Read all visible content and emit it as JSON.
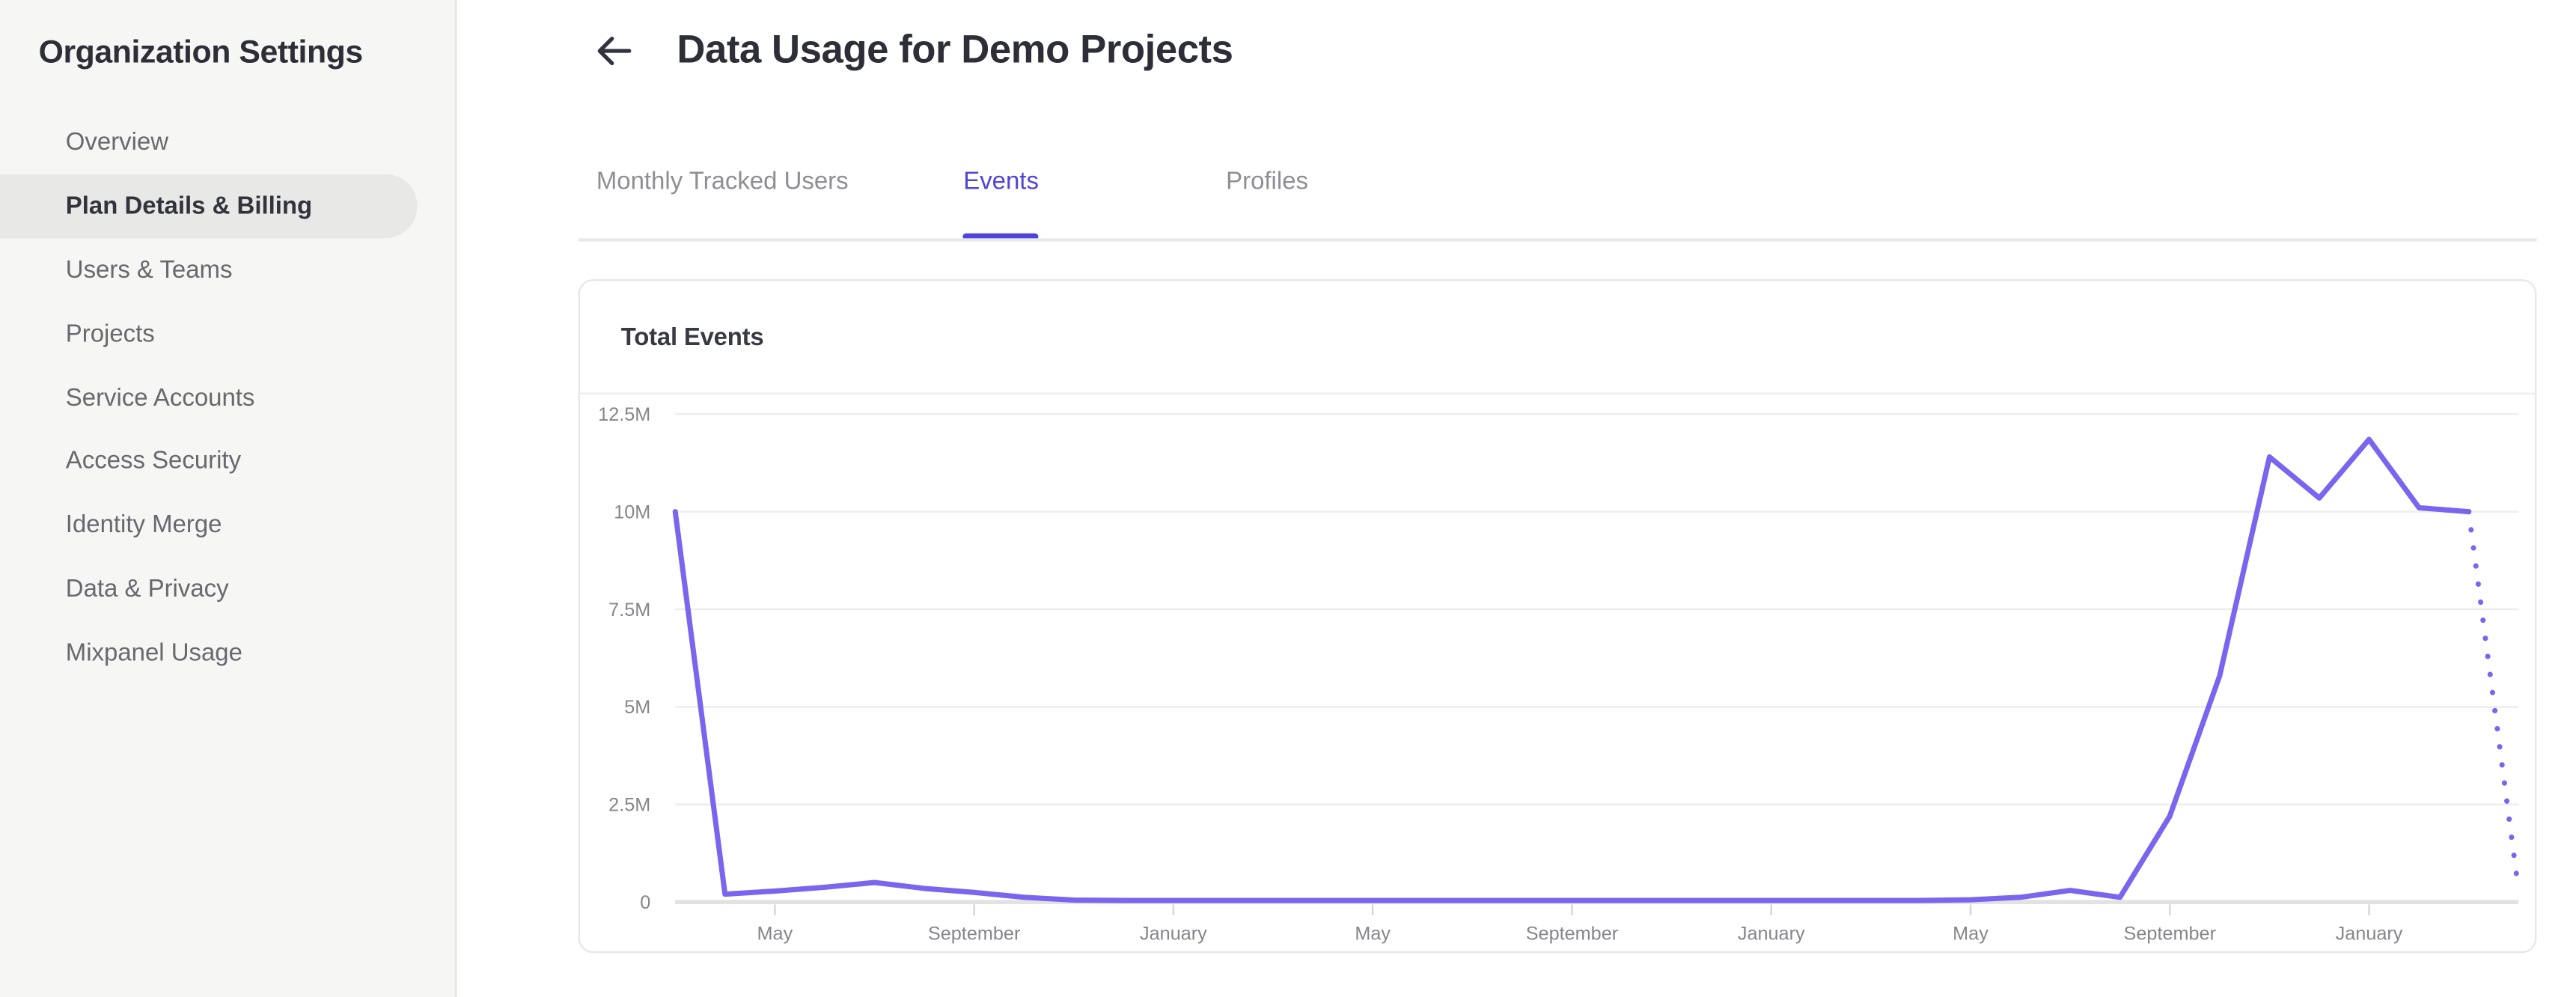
{
  "sidebar": {
    "title": "Organization Settings",
    "items": [
      {
        "label": "Overview",
        "active": false
      },
      {
        "label": "Plan Details & Billing",
        "active": true
      },
      {
        "label": "Users & Teams",
        "active": false
      },
      {
        "label": "Projects",
        "active": false
      },
      {
        "label": "Service Accounts",
        "active": false
      },
      {
        "label": "Access Security",
        "active": false
      },
      {
        "label": "Identity Merge",
        "active": false
      },
      {
        "label": "Data & Privacy",
        "active": false
      },
      {
        "label": "Mixpanel Usage",
        "active": false
      }
    ]
  },
  "header": {
    "title": "Data Usage for Demo Projects",
    "back_icon": "arrow-left"
  },
  "tabs": {
    "items": [
      {
        "label": "Monthly Tracked Users",
        "active": false
      },
      {
        "label": "Events",
        "active": true
      },
      {
        "label": "Profiles",
        "active": false
      }
    ]
  },
  "card": {
    "title": "Total Events"
  },
  "colors": {
    "line_purple": "#7b64ee",
    "tab_active": "#5145d8",
    "tab_underline": "#4f43dc",
    "gridline": "#eeeeee",
    "baseline": "#e2e2e2",
    "tick": "#d9d9d9",
    "axis_text": "#85858d"
  },
  "chart_data": {
    "type": "line",
    "title": "Total Events",
    "ylabel": "",
    "xlabel": "",
    "y_tick_labels": [
      "0",
      "2.5M",
      "5M",
      "7.5M",
      "10M",
      "12.5M"
    ],
    "y_tick_values_millions": [
      0,
      2.5,
      5,
      7.5,
      10,
      12.5
    ],
    "ylim_millions": [
      0,
      12.5
    ],
    "x_tick_labels": [
      "May",
      "September",
      "January",
      "May",
      "September",
      "January",
      "May",
      "September",
      "January"
    ],
    "x_tick_month_indices": [
      2,
      6,
      10,
      14,
      18,
      22,
      26,
      30,
      34
    ],
    "grid": "horizontal-only",
    "legend": "none",
    "values_millions": [
      10,
      0.2,
      0.28,
      0.38,
      0.5,
      0.35,
      0.25,
      0.12,
      0.05,
      0.04,
      0.04,
      0.04,
      0.04,
      0.04,
      0.04,
      0.04,
      0.04,
      0.04,
      0.04,
      0.04,
      0.04,
      0.04,
      0.04,
      0.04,
      0.04,
      0.04,
      0.06,
      0.12,
      0.3,
      0.12,
      2.2,
      5.8,
      11.4,
      10.35,
      11.85,
      10.1,
      10.0
    ],
    "projected_last_value_millions": 0.3,
    "dashed_tail": true
  }
}
